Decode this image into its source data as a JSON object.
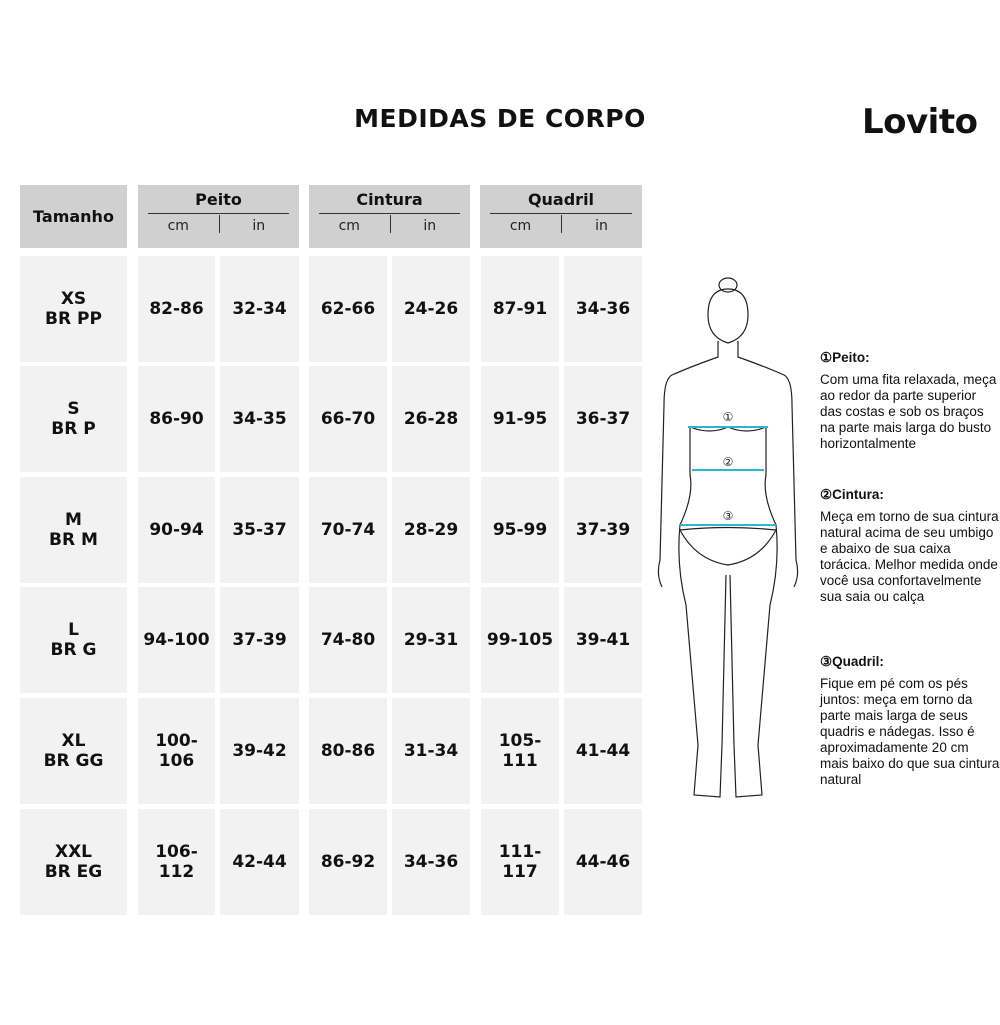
{
  "title": "MEDIDAS DE CORPO",
  "brand": "Lovito",
  "table": {
    "size_header": "Tamanho",
    "groups": [
      {
        "label": "Peito",
        "units": [
          "cm",
          "in"
        ]
      },
      {
        "label": "Cintura",
        "units": [
          "cm",
          "in"
        ]
      },
      {
        "label": "Quadril",
        "units": [
          "cm",
          "in"
        ]
      }
    ],
    "rows": [
      {
        "size": "XS",
        "br": "BR PP",
        "values": [
          "82-86",
          "32-34",
          "62-66",
          "24-26",
          "87-91",
          "34-36"
        ]
      },
      {
        "size": "S",
        "br": "BR P",
        "values": [
          "86-90",
          "34-35",
          "66-70",
          "26-28",
          "91-95",
          "36-37"
        ]
      },
      {
        "size": "M",
        "br": "BR M",
        "values": [
          "90-94",
          "35-37",
          "70-74",
          "28-29",
          "95-99",
          "37-39"
        ]
      },
      {
        "size": "L",
        "br": "BR G",
        "values": [
          "94-100",
          "37-39",
          "74-80",
          "29-31",
          "99-105",
          "39-41"
        ]
      },
      {
        "size": "XL",
        "br": "BR GG",
        "values": [
          "100-106",
          "39-42",
          "80-86",
          "31-34",
          "105-111",
          "41-44"
        ]
      },
      {
        "size": "XXL",
        "br": "BR EG",
        "values": [
          "106-112",
          "42-44",
          "86-92",
          "34-36",
          "111-117",
          "44-46"
        ]
      }
    ]
  },
  "figure": {
    "markers": [
      "①",
      "②",
      "③"
    ],
    "line_color": "#29b6d8"
  },
  "instructions": [
    {
      "heading": "①Peito:",
      "text": "Com uma fita relaxada, meça ao redor da parte superior das costas e sob os braços na parte mais larga do busto horizontalmente"
    },
    {
      "heading": "②Cintura:",
      "text": "Meça em torno de sua cintura natural acima de seu umbigo e abaixo de sua caixa torácica. Melhor medida onde você usa confortavelmente sua saia ou calça"
    },
    {
      "heading": "③Quadril:",
      "text": "Fique em pé com os pés juntos: meça em torno da parte mais larga de seus quadris e nádegas. Isso é aproximadamente 20 cm mais baixo do que sua cintura natural"
    }
  ]
}
